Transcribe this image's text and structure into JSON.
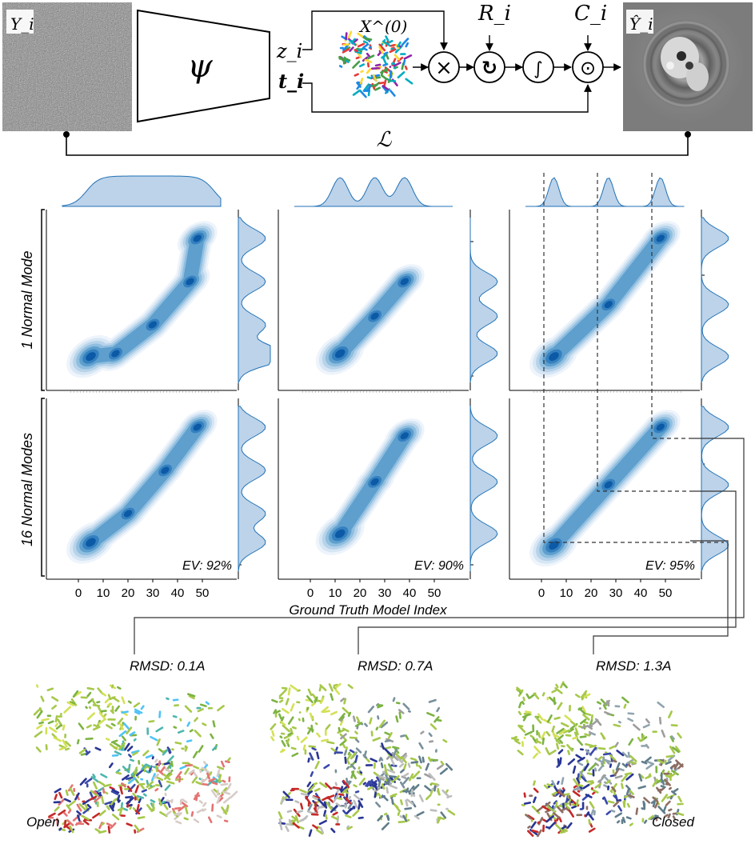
{
  "pipeline": {
    "input_label": "Y_i",
    "encoder_label": "ψ",
    "z_label": "z_i",
    "t_label": "t_i",
    "x0_label": "X^(0)",
    "r_label": "R_i",
    "c_label": "C_i",
    "output_label": "Ŷ_i",
    "loss_label": "ℒ",
    "multiply_symbol": "×",
    "rotate_symbol": "↻",
    "integral_symbol": "∫",
    "conv_symbol": "⊙"
  },
  "grid": {
    "rows": [
      {
        "label": "1 Normal Mode"
      },
      {
        "label": "16 Normal Modes"
      }
    ],
    "columns": [
      {
        "ev": ""
      },
      {
        "ev": ""
      },
      {
        "ev": ""
      }
    ],
    "ev_labels": [
      "EV: 92%",
      "EV: 90%",
      "EV: 95%"
    ],
    "x_ticks": [
      "0",
      "10",
      "20",
      "30",
      "40",
      "50"
    ],
    "x_axis_label": "Ground Truth Model Index"
  },
  "chart_data": [
    {
      "type": "heatmap",
      "row": "1 Normal Mode",
      "column": 1,
      "modes": [
        [
          5,
          4
        ],
        [
          15,
          5
        ],
        [
          30,
          15
        ],
        [
          45,
          30
        ],
        [
          48,
          45
        ]
      ],
      "x_top_marginal_peaks": "flat"
    },
    {
      "type": "heatmap",
      "row": "1 Normal Mode",
      "column": 2,
      "modes": [
        [
          12,
          5
        ],
        [
          26,
          18
        ],
        [
          38,
          30
        ]
      ],
      "x_top_marginal_peaks": [
        12,
        26,
        38
      ]
    },
    {
      "type": "heatmap",
      "row": "1 Normal Mode",
      "column": 3,
      "modes": [
        [
          5,
          4
        ],
        [
          27,
          22
        ],
        [
          48,
          45
        ]
      ],
      "x_top_marginal_peaks": [
        5,
        27,
        48
      ]
    },
    {
      "type": "heatmap",
      "row": "16 Normal Modes",
      "column": 1,
      "modes": [
        [
          5,
          5
        ],
        [
          20,
          15
        ],
        [
          35,
          30
        ],
        [
          48,
          45
        ]
      ],
      "ev": "EV: 92%"
    },
    {
      "type": "heatmap",
      "row": "16 Normal Modes",
      "column": 2,
      "modes": [
        [
          12,
          8
        ],
        [
          26,
          26
        ],
        [
          38,
          42
        ]
      ],
      "ev": "EV: 90%"
    },
    {
      "type": "heatmap",
      "row": "16 Normal Modes",
      "column": 3,
      "modes": [
        [
          5,
          4
        ],
        [
          27,
          25
        ],
        [
          48,
          45
        ]
      ],
      "ev": "EV: 95%"
    }
  ],
  "structures": [
    {
      "rmsd": "RMSD: 0.1A",
      "state": "Open"
    },
    {
      "rmsd": "RMSD: 0.7A",
      "state": ""
    },
    {
      "rmsd": "RMSD: 1.3A",
      "state": "Closed"
    }
  ],
  "colors": {
    "kde_light": "#dbe9f6",
    "kde_mid": "#6baed6",
    "kde_dark": "#08519c",
    "marginal_fill": "#bcd3ea",
    "marginal_stroke": "#2171b5"
  }
}
